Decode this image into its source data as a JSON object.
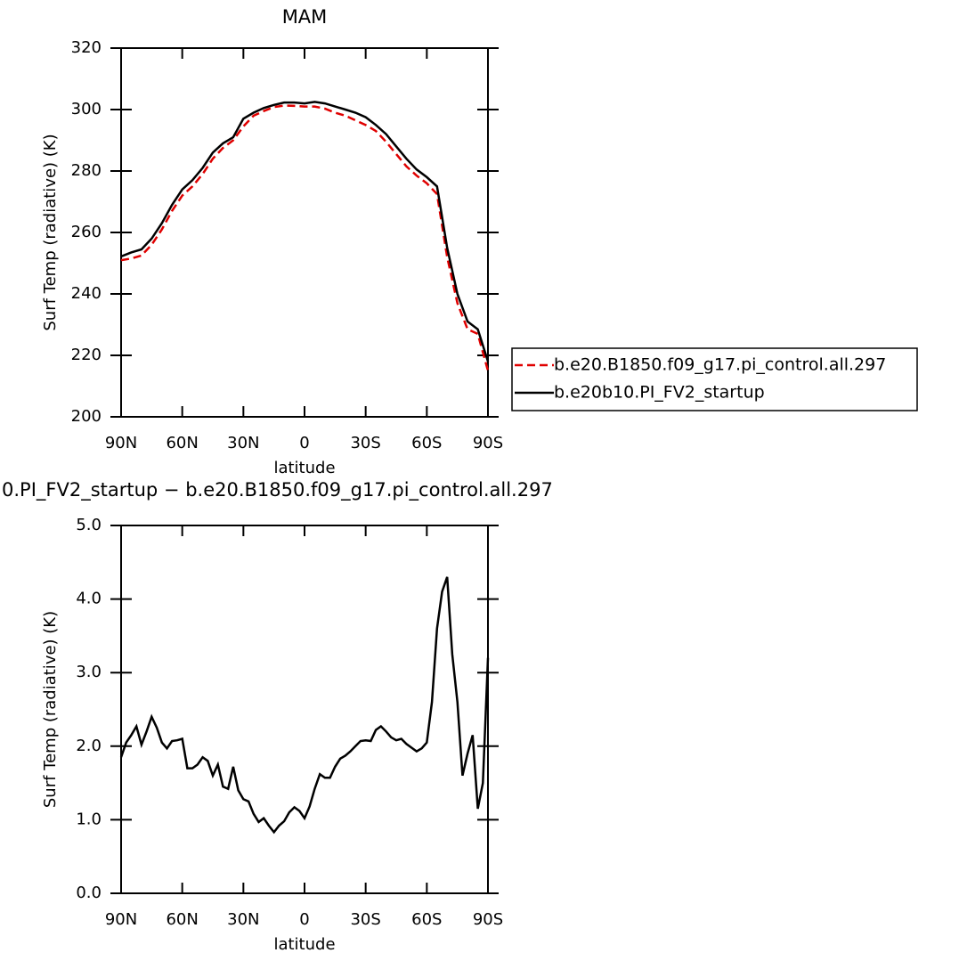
{
  "chart_data": [
    {
      "type": "line",
      "title": "MAM",
      "xlabel": "latitude",
      "ylabel": "Surf Temp (radiative) (K)",
      "x": [
        90,
        85,
        80,
        75,
        70,
        65,
        60,
        55,
        50,
        45,
        40,
        35,
        30,
        25,
        20,
        15,
        10,
        5,
        0,
        -5,
        -10,
        -15,
        -20,
        -25,
        -30,
        -35,
        -40,
        -45,
        -50,
        -55,
        -60,
        -65,
        -70,
        -75,
        -80,
        -85,
        -90
      ],
      "xlim": [
        90,
        -90
      ],
      "xticks": [
        {
          "value": 90,
          "label": "90N"
        },
        {
          "value": 60,
          "label": "60N"
        },
        {
          "value": 30,
          "label": "30N"
        },
        0,
        {
          "value": -30,
          "label": "30S"
        },
        {
          "value": -60,
          "label": "60S"
        },
        {
          "value": -90,
          "label": "90S"
        }
      ],
      "ylim": [
        200,
        320
      ],
      "yticks": [
        200,
        220,
        240,
        260,
        280,
        300,
        320
      ],
      "legend": "right",
      "series": [
        {
          "name": "b.e20.B1850.f09_g17.pi_control.all.297",
          "color": "#e00000",
          "linestyle": "dashed",
          "values": [
            251,
            251.5,
            252.5,
            256,
            261,
            267,
            272,
            275,
            279,
            284,
            287.5,
            290,
            294.5,
            298,
            299.5,
            300.8,
            301.3,
            301.2,
            301,
            301,
            300.3,
            299,
            298,
            296.5,
            295,
            293,
            289.5,
            285.5,
            281.5,
            278.5,
            276,
            272.5,
            252,
            237,
            228.5,
            227,
            215
          ]
        },
        {
          "name": "b.e20b10.PI_FV2_startup",
          "color": "#000000",
          "linestyle": "solid",
          "values": [
            252.2,
            253.5,
            254.5,
            258,
            263,
            269,
            274,
            277,
            281,
            286,
            289,
            291,
            297,
            299,
            300.5,
            301.5,
            302.3,
            302.3,
            302,
            302.5,
            302,
            301,
            300,
            299,
            297.5,
            295,
            292,
            288,
            284,
            280.5,
            278,
            275,
            255,
            240,
            231,
            228.5,
            218
          ]
        }
      ]
    },
    {
      "type": "line",
      "title": "0.PI_FV2_startup − b.e20.B1850.f09_g17.pi_control.all.297",
      "xlabel": "latitude",
      "ylabel": "Surf Temp (radiative) (K)",
      "x": [
        90,
        87.5,
        85,
        82.5,
        80,
        77.5,
        75,
        72.5,
        70,
        67.5,
        65,
        62.5,
        60,
        57.5,
        55,
        52.5,
        50,
        47.5,
        45,
        42.5,
        40,
        37.5,
        35,
        32.5,
        30,
        27.5,
        25,
        22.5,
        20,
        17.5,
        15,
        12.5,
        10,
        7.5,
        5,
        2.5,
        0,
        -2.5,
        -5,
        -7.5,
        -10,
        -12.5,
        -15,
        -17.5,
        -20,
        -22.5,
        -25,
        -27.5,
        -30,
        -32.5,
        -35,
        -37.5,
        -40,
        -42.5,
        -45,
        -47.5,
        -50,
        -52.5,
        -55,
        -57.5,
        -60,
        -62.5,
        -65,
        -67.5,
        -70,
        -72.5,
        -75,
        -77.5,
        -80,
        -82.5,
        -85,
        -87.5,
        -90
      ],
      "xlim": [
        90,
        -90
      ],
      "xticks": [
        {
          "value": 90,
          "label": "90N"
        },
        {
          "value": 60,
          "label": "60N"
        },
        {
          "value": 30,
          "label": "30N"
        },
        0,
        {
          "value": -30,
          "label": "30S"
        },
        {
          "value": -60,
          "label": "60S"
        },
        {
          "value": -90,
          "label": "90S"
        }
      ],
      "ylim": [
        0,
        5
      ],
      "yticks": [
        {
          "value": 0,
          "label": "0.0"
        },
        {
          "value": 1,
          "label": "1.0"
        },
        {
          "value": 2,
          "label": "2.0"
        },
        {
          "value": 3,
          "label": "3.0"
        },
        {
          "value": 4,
          "label": "4.0"
        },
        {
          "value": 5,
          "label": "5.0"
        }
      ],
      "series": [
        {
          "color": "#000000",
          "linestyle": "solid",
          "values": [
            1.85,
            2.05,
            2.15,
            2.27,
            2.02,
            2.2,
            2.4,
            2.25,
            2.05,
            1.97,
            2.07,
            2.08,
            2.1,
            1.7,
            1.7,
            1.75,
            1.85,
            1.8,
            1.6,
            1.75,
            1.45,
            1.42,
            1.72,
            1.4,
            1.28,
            1.25,
            1.08,
            0.97,
            1.02,
            0.92,
            0.83,
            0.92,
            0.98,
            1.1,
            1.17,
            1.12,
            1.02,
            1.18,
            1.42,
            1.62,
            1.57,
            1.57,
            1.72,
            1.83,
            1.87,
            1.93,
            2.0,
            2.07,
            2.08,
            2.07,
            2.22,
            2.27,
            2.2,
            2.12,
            2.08,
            2.1,
            2.03,
            1.98,
            1.93,
            1.97,
            2.05,
            2.6,
            3.6,
            4.1,
            4.3,
            3.25,
            2.6,
            1.6,
            1.9,
            2.15,
            1.15,
            1.5,
            3.2
          ]
        }
      ]
    }
  ]
}
